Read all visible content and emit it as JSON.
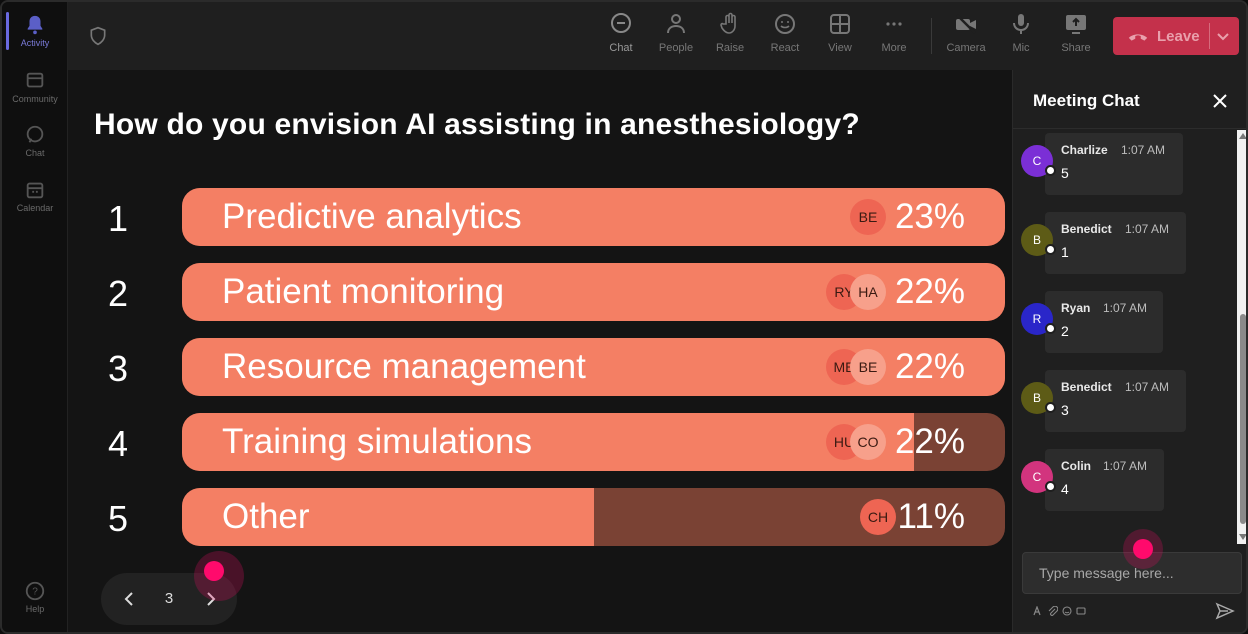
{
  "rail": {
    "items": [
      {
        "label": "Activity",
        "icon": "bell-icon"
      },
      {
        "label": "Community",
        "icon": "community-icon"
      },
      {
        "label": "Chat",
        "icon": "chat-icon"
      },
      {
        "label": "Calendar",
        "icon": "calendar-icon"
      },
      {
        "label": "Help",
        "icon": "help-icon"
      }
    ]
  },
  "toolbar": {
    "chat": "Chat",
    "people": "People",
    "raise": "Raise",
    "react": "React",
    "view": "View",
    "more": "More",
    "camera": "Camera",
    "mic": "Mic",
    "share": "Share",
    "leave": "Leave"
  },
  "poll": {
    "question": "How do you envision AI assisting in anesthesiology?",
    "options": [
      {
        "num": "1",
        "label": "Predictive analytics",
        "pct": "23%",
        "fill": 1.0,
        "avatars": [
          "BE"
        ]
      },
      {
        "num": "2",
        "label": "Patient monitoring",
        "pct": "22%",
        "fill": 1.0,
        "avatars": [
          "RY",
          "HA"
        ]
      },
      {
        "num": "3",
        "label": "Resource management",
        "pct": "22%",
        "fill": 1.0,
        "avatars": [
          "ME",
          "BE"
        ]
      },
      {
        "num": "4",
        "label": "Training simulations",
        "pct": "22%",
        "fill": 0.89,
        "avatars": [
          "HU",
          "CO"
        ]
      },
      {
        "num": "5",
        "label": "Other",
        "pct": "11%",
        "fill": 0.5,
        "avatars": [
          "CH"
        ]
      }
    ],
    "page": "3"
  },
  "chat": {
    "title": "Meeting Chat",
    "messages": [
      {
        "initial": "C",
        "name": "Charlize",
        "time": "1:07 AM",
        "text": "5",
        "color": "#7b2fd6"
      },
      {
        "initial": "B",
        "name": "Benedict",
        "time": "1:07 AM",
        "text": "1",
        "color": "#5d5b16"
      },
      {
        "initial": "R",
        "name": "Ryan",
        "time": "1:07 AM",
        "text": "2",
        "color": "#2a26c9"
      },
      {
        "initial": "B",
        "name": "Benedict",
        "time": "1:07 AM",
        "text": "3",
        "color": "#5d5b16"
      },
      {
        "initial": "C",
        "name": "Colin",
        "time": "1:07 AM",
        "text": "4",
        "color": "#d2347e"
      }
    ],
    "placeholder": "Type message here..."
  },
  "colors": {
    "bar_fill": "#f47f64",
    "bar_track": "#7a4234",
    "leave": "#c4314b",
    "accent": "#5b5fc7",
    "cursor": "#ff0a6c"
  }
}
